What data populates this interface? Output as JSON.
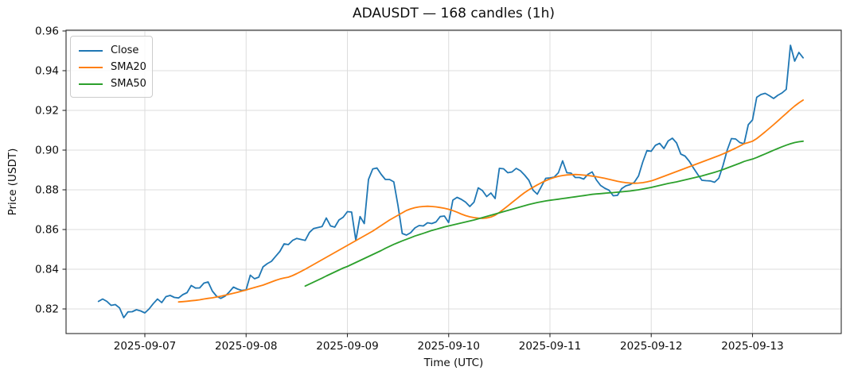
{
  "figure": {
    "title": "ADAUSDT — 168 candles (1h)",
    "ylabel": "Price (USDT)",
    "xlabel": "Time (UTC)"
  },
  "legend": {
    "items": [
      {
        "label": "Close",
        "color": "#1f77b4"
      },
      {
        "label": "SMA20",
        "color": "#ff7f0e"
      },
      {
        "label": "SMA50",
        "color": "#2ca02c"
      }
    ]
  },
  "chart_data": {
    "type": "line",
    "title": "ADAUSDT — 168 candles (1h)",
    "xlabel": "Time (UTC)",
    "ylabel": "Price (USDT)",
    "grid": true,
    "legend_position": "upper left",
    "x_unit": "hourly candle index (1h per step)",
    "xlim": [
      -7.67,
      176.03
    ],
    "ylim": [
      0.8076,
      0.9604
    ],
    "y_ticks": [
      0.82,
      0.84,
      0.86,
      0.88,
      0.9,
      0.92,
      0.94,
      0.96
    ],
    "x_ticks": [
      {
        "hour": 11,
        "label": "2025-09-07"
      },
      {
        "hour": 35,
        "label": "2025-09-08"
      },
      {
        "hour": 59,
        "label": "2025-09-09"
      },
      {
        "hour": 83,
        "label": "2025-09-10"
      },
      {
        "hour": 107,
        "label": "2025-09-11"
      },
      {
        "hour": 131,
        "label": "2025-09-12"
      },
      {
        "hour": 155,
        "label": "2025-09-13"
      }
    ],
    "series": [
      {
        "name": "Close",
        "color": "#1f77b4",
        "start_index": 0,
        "values": [
          0.8238,
          0.825,
          0.8238,
          0.8218,
          0.8222,
          0.8205,
          0.8156,
          0.8185,
          0.8186,
          0.8196,
          0.819,
          0.818,
          0.82,
          0.8227,
          0.825,
          0.8232,
          0.8262,
          0.8268,
          0.8258,
          0.8255,
          0.8272,
          0.8282,
          0.8318,
          0.8305,
          0.8306,
          0.833,
          0.8336,
          0.829,
          0.8264,
          0.8253,
          0.8264,
          0.8285,
          0.831,
          0.83,
          0.8293,
          0.8296,
          0.837,
          0.8352,
          0.836,
          0.8412,
          0.8428,
          0.844,
          0.8465,
          0.849,
          0.8528,
          0.8524,
          0.8545,
          0.8555,
          0.855,
          0.8545,
          0.8585,
          0.8605,
          0.861,
          0.8615,
          0.8658,
          0.8618,
          0.8612,
          0.8648,
          0.8662,
          0.869,
          0.8688,
          0.8545,
          0.8665,
          0.863,
          0.8852,
          0.8905,
          0.891,
          0.8878,
          0.8852,
          0.8852,
          0.884,
          0.872,
          0.858,
          0.8572,
          0.8584,
          0.8608,
          0.862,
          0.8618,
          0.8634,
          0.863,
          0.8638,
          0.8665,
          0.8668,
          0.8635,
          0.8748,
          0.8762,
          0.8752,
          0.8738,
          0.8716,
          0.8738,
          0.881,
          0.8796,
          0.8766,
          0.8784,
          0.8756,
          0.8908,
          0.8906,
          0.8886,
          0.889,
          0.8908,
          0.8896,
          0.8874,
          0.8848,
          0.8798,
          0.8778,
          0.8818,
          0.8858,
          0.886,
          0.8864,
          0.8886,
          0.8946,
          0.8886,
          0.8884,
          0.8862,
          0.8862,
          0.8854,
          0.8878,
          0.889,
          0.885,
          0.8822,
          0.8808,
          0.8798,
          0.877,
          0.8772,
          0.8806,
          0.882,
          0.8826,
          0.8838,
          0.887,
          0.894,
          0.8998,
          0.8994,
          0.9024,
          0.9034,
          0.9008,
          0.9046,
          0.906,
          0.9036,
          0.898,
          0.897,
          0.8944,
          0.891,
          0.8878,
          0.8848,
          0.8846,
          0.8845,
          0.8838,
          0.8858,
          0.8922,
          0.9,
          0.9058,
          0.9056,
          0.9038,
          0.9032,
          0.9128,
          0.9152,
          0.9266,
          0.928,
          0.9286,
          0.9274,
          0.926,
          0.9276,
          0.9288,
          0.9306,
          0.9528,
          0.9448,
          0.9492,
          0.9465
        ]
      },
      {
        "name": "SMA20",
        "color": "#ff7f0e",
        "start_index": 19,
        "values": [
          0.8235,
          0.8237,
          0.8239,
          0.8241,
          0.8243,
          0.8246,
          0.825,
          0.8253,
          0.8256,
          0.826,
          0.8264,
          0.8269,
          0.8274,
          0.8279,
          0.8284,
          0.829,
          0.8295,
          0.8302,
          0.8308,
          0.8314,
          0.832,
          0.8328,
          0.8336,
          0.8344,
          0.8351,
          0.8356,
          0.836,
          0.8368,
          0.8378,
          0.8389,
          0.84,
          0.8412,
          0.8424,
          0.8436,
          0.8448,
          0.846,
          0.8472,
          0.8484,
          0.8496,
          0.8508,
          0.852,
          0.8532,
          0.8544,
          0.8556,
          0.8568,
          0.858,
          0.8592,
          0.8606,
          0.862,
          0.8634,
          0.8648,
          0.866,
          0.8672,
          0.8684,
          0.8696,
          0.8704,
          0.871,
          0.8714,
          0.8716,
          0.8717,
          0.8716,
          0.8714,
          0.8711,
          0.8707,
          0.8702,
          0.8695,
          0.8687,
          0.8678,
          0.867,
          0.8664,
          0.866,
          0.8657,
          0.8656,
          0.8658,
          0.8663,
          0.8672,
          0.8686,
          0.8702,
          0.8719,
          0.8736,
          0.8753,
          0.877,
          0.8786,
          0.88,
          0.8813,
          0.8825,
          0.8836,
          0.8846,
          0.8855,
          0.8862,
          0.8868,
          0.8872,
          0.8875,
          0.8876,
          0.8877,
          0.8876,
          0.8874,
          0.8872,
          0.8869,
          0.8866,
          0.8862,
          0.8858,
          0.8853,
          0.8848,
          0.8843,
          0.8839,
          0.8836,
          0.8834,
          0.8833,
          0.8834,
          0.8836,
          0.884,
          0.8845,
          0.8852,
          0.886,
          0.8868,
          0.8876,
          0.8884,
          0.8892,
          0.89,
          0.8908,
          0.8916,
          0.8924,
          0.8932,
          0.894,
          0.8948,
          0.8956,
          0.8964,
          0.8972,
          0.8981,
          0.899,
          0.9,
          0.901,
          0.9021,
          0.9032,
          0.9038,
          0.9045,
          0.9058,
          0.9075,
          0.9092,
          0.911,
          0.9128,
          0.9147,
          0.9166,
          0.9185,
          0.9204,
          0.9222,
          0.9238,
          0.9252
        ]
      },
      {
        "name": "SMA50",
        "color": "#2ca02c",
        "start_index": 49,
        "values": [
          0.8315,
          0.8325,
          0.8335,
          0.8345,
          0.8355,
          0.8366,
          0.8376,
          0.8386,
          0.8396,
          0.8406,
          0.8414,
          0.8424,
          0.8434,
          0.8444,
          0.8454,
          0.8464,
          0.8474,
          0.8484,
          0.8494,
          0.8505,
          0.8515,
          0.8525,
          0.8534,
          0.8543,
          0.8551,
          0.8559,
          0.8567,
          0.8574,
          0.8581,
          0.8588,
          0.8595,
          0.8601,
          0.8607,
          0.8613,
          0.8618,
          0.8623,
          0.8628,
          0.8633,
          0.8638,
          0.8643,
          0.8648,
          0.8654,
          0.866,
          0.8666,
          0.8672,
          0.8678,
          0.8684,
          0.869,
          0.8696,
          0.8702,
          0.8708,
          0.8714,
          0.872,
          0.8726,
          0.8731,
          0.8736,
          0.874,
          0.8744,
          0.8747,
          0.875,
          0.8753,
          0.8756,
          0.8759,
          0.8762,
          0.8765,
          0.8768,
          0.8771,
          0.8774,
          0.8777,
          0.8779,
          0.8781,
          0.8783,
          0.8785,
          0.8786,
          0.8788,
          0.879,
          0.8792,
          0.8794,
          0.8797,
          0.88,
          0.8804,
          0.8808,
          0.8812,
          0.8817,
          0.8822,
          0.8827,
          0.8832,
          0.8836,
          0.884,
          0.8845,
          0.885,
          0.8855,
          0.886,
          0.8865,
          0.887,
          0.8876,
          0.8882,
          0.8888,
          0.8895,
          0.8902,
          0.891,
          0.8918,
          0.8926,
          0.8934,
          0.8943,
          0.8949,
          0.8955,
          0.8963,
          0.8972,
          0.8981,
          0.899,
          0.8999,
          0.9008,
          0.9017,
          0.9025,
          0.9032,
          0.9038,
          0.9042,
          0.9045
        ]
      }
    ]
  }
}
